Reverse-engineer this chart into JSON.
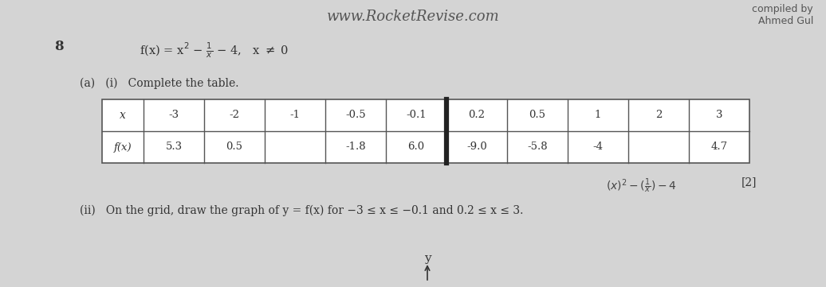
{
  "background_color": "#c8c8c8",
  "header_text": "www.RocketRevise.com",
  "header_right": "compiled by\nAhmed Gul",
  "question_number": "8",
  "part_a_label": "(a)   (i)   Complete the table.",
  "table_x_label": "x",
  "table_fx_label": "f(x)",
  "x_values": [
    "-3",
    "-2",
    "-1",
    "-0.5",
    "-0.1",
    "0.2",
    "0.5",
    "1",
    "2",
    "3"
  ],
  "fx_values": [
    "5.3",
    "0.5",
    "",
    "-1.8",
    "6.0",
    "-9.0",
    "-5.8",
    "-4",
    "",
    "4.7"
  ],
  "thick_divider_after_col": 5,
  "part_ii_text": "(ii)   On the grid, draw the graph of y = f(x) for −3 ≤ x ≤ −0.1 and 0.2 ≤ x ≤ 3.",
  "marks": "[2]",
  "y_label": "y",
  "font_color": "#333333",
  "table_bg": "#ffffff",
  "table_border_color": "#555555"
}
